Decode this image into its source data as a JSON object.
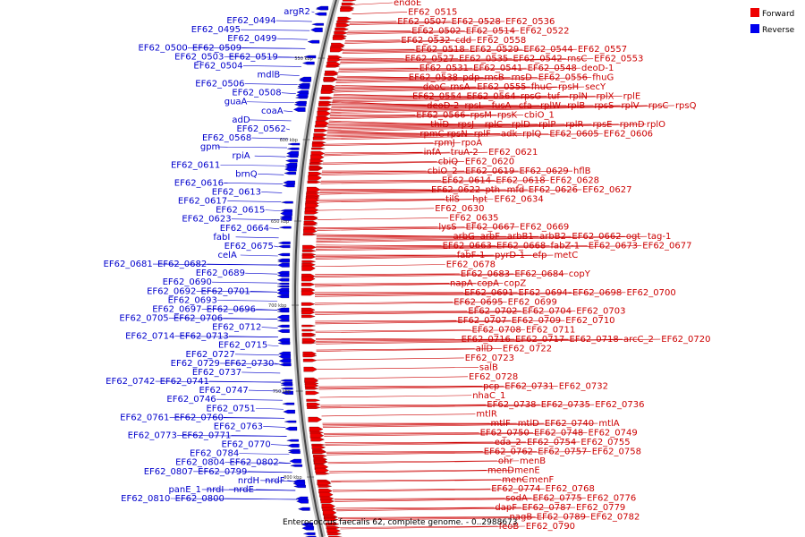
{
  "title": "Enterococcus faecalis 62, complete genome. - 0..2988673",
  "colors": {
    "forward": "#ee0000",
    "reverse": "#0000ee",
    "forward_label": "#cc0000",
    "reverse_label": "#0000cc",
    "backbone": "#888888"
  },
  "legend": [
    {
      "name": "Forward",
      "color": "#ee0000"
    },
    {
      "name": "Reverse",
      "color": "#0000ee"
    }
  ],
  "ruler": [
    "550 kbp",
    "600 kbp",
    "650 kbp",
    "700 kbp",
    "750 kbp",
    "800 kbp"
  ],
  "forward_labels": [
    [
      "endoE"
    ],
    [
      "EF62_0515"
    ],
    [
      "EF62_0507",
      "EF62_0528",
      "EF62_0536"
    ],
    [
      "EF62_0502",
      "EF62_0514",
      "EF62_0522"
    ],
    [
      "EF62_0532",
      "cdd",
      "EF62_0558"
    ],
    [
      "EF62_0518",
      "EF62_0529",
      "EF62_0544",
      "EF62_0557"
    ],
    [
      "EF62_0527",
      "EF62_0535",
      "EF62_0542",
      "rnsC",
      "EF62_0553"
    ],
    [
      "EF62_0531",
      "EF62_0541",
      "EF62_0548",
      "deoD-1"
    ],
    [
      "EF62_0538",
      "pdp",
      "rnsB",
      "rnsD",
      "EF62_0556",
      "fhuG"
    ],
    [
      "deoC",
      "rnsA",
      "EF62_0555",
      "fhuC",
      "rpsH",
      "secY"
    ],
    [
      "EF62_0554",
      "EF62_0564",
      "rpsG",
      "tuf",
      "rplN",
      "rplX",
      "rplE"
    ],
    [
      "deoD-2",
      "rpsL",
      "fusA",
      "cfa",
      "rplW",
      "rplB",
      "rpsS",
      "rplV",
      "rpsC",
      "rpsQ"
    ],
    [
      "EF62_0566",
      "rpsM",
      "rpsK",
      "cbiO_1"
    ],
    [
      "thiD",
      "rpsJ",
      "rplC",
      "rplD",
      "rplP",
      "rplR",
      "rpsE",
      "rpmD",
      "rplO"
    ],
    [
      "rpmC",
      "rpsN",
      "rplF",
      "adk",
      "rplQ",
      "EF62_0605",
      "EF62_0606"
    ],
    [
      "rpmJ",
      "rpoA"
    ],
    [
      "infA",
      "truA-2",
      "EF62_0621"
    ],
    [
      "cbiQ",
      "EF62_0620"
    ],
    [
      "cbiO_2",
      "EF62_0619",
      "EF62_0629",
      "hflB"
    ],
    [
      "EF62_0614",
      "EF62_0618",
      "EF62_0628"
    ],
    [
      "EF62_0622",
      "pth",
      "mfd",
      "EF62_0626",
      "EF62_0627"
    ],
    [
      "tilS",
      "hpt",
      "EF62_0634"
    ],
    [
      "EF62_0630"
    ],
    [
      "EF62_0635"
    ],
    [
      "lysS",
      "EF62_0667",
      "EF62_0669"
    ],
    [
      "arbG",
      "arbF",
      "arbB1",
      "arbB2",
      "EF62_0662",
      "ogt",
      "tag-1"
    ],
    [
      "EF62_0663",
      "EF62_0668",
      "fabZ-1",
      "EF62_0673",
      "EF62_0677"
    ],
    [
      "fabF-1",
      "pyrD-1",
      "efp",
      "metC"
    ],
    [
      "EF62_0678"
    ],
    [
      "EF62_0683",
      "EF62_0684",
      "copY"
    ],
    [
      "napA",
      "copA",
      "copZ"
    ],
    [
      "EF62_0691",
      "EF62_0694",
      "EF62_0698",
      "EF62_0700"
    ],
    [
      "EF62_0695",
      "EF62_0699"
    ],
    [
      "EF62_0702",
      "EF62_0704",
      "EF62_0703"
    ],
    [
      "EF62_0707",
      "EF62_0709",
      "EF62_0710"
    ],
    [
      "EF62_0708",
      "EF62_0711"
    ],
    [
      "EF62_0716",
      "EF62_0717",
      "EF62_0718",
      "arcC_2",
      "EF62_0720"
    ],
    [
      "allD",
      "EF62_0722"
    ],
    [
      "EF62_0723"
    ],
    [
      "salB"
    ],
    [
      "EF62_0728"
    ],
    [
      "pcp",
      "EF62_0731",
      "EF62_0732"
    ],
    [
      "nhaC_1"
    ],
    [
      "EF62_0738",
      "EF62_0735",
      "EF62_0736"
    ],
    [
      "mtlR"
    ],
    [
      "mtlF",
      "mtlD",
      "EF62_0740",
      "mtlA"
    ],
    [
      "EF62_0750",
      "EF62_0748",
      "EF62_0749"
    ],
    [
      "eda_2",
      "EF62_0754",
      "EF62_0755"
    ],
    [
      "EF62_0762",
      "EF62_0757",
      "EF62_0758"
    ],
    [
      "ohr",
      "menB"
    ],
    [
      "menD",
      "menE"
    ],
    [
      "menC",
      "menF"
    ],
    [
      "EF62_0774",
      "EF62_0768"
    ],
    [
      "sodA",
      "EF62_0775",
      "EF62_0776"
    ],
    [
      "dapF",
      "EF62_0787",
      "EF62_0779"
    ],
    [
      "nagB",
      "EF62_0789",
      "EF62_0782"
    ],
    [
      "feoB",
      "EF62_0790"
    ]
  ],
  "reverse_labels": [
    [
      "argR2"
    ],
    [
      "EF62_0494"
    ],
    [
      "EF62_0495"
    ],
    [
      "EF62_0499"
    ],
    [
      "EF62_0500",
      "EF62_0509"
    ],
    [
      "EF62_0503",
      "EF62_0519"
    ],
    [
      "EF62_0504"
    ],
    [
      "mdlB"
    ],
    [
      "EF62_0506"
    ],
    [
      "EF62_0508"
    ],
    [
      "guaA"
    ],
    [
      "coaA"
    ],
    [
      "adD"
    ],
    [
      "EF62_0562"
    ],
    [
      "EF62_0568"
    ],
    [
      "gpm"
    ],
    [
      "rpiA"
    ],
    [
      "EF62_0611"
    ],
    [
      "brnQ"
    ],
    [
      "EF62_0616"
    ],
    [
      "EF62_0613"
    ],
    [
      "EF62_0617"
    ],
    [
      "EF62_0615"
    ],
    [
      "EF62_0623"
    ],
    [
      "EF62_0664"
    ],
    [
      "fabI"
    ],
    [
      "EF62_0675"
    ],
    [
      "celA"
    ],
    [
      "EF62_0681",
      "EF62_0682"
    ],
    [
      "EF62_0689"
    ],
    [
      "EF62_0690"
    ],
    [
      "EF62_0692",
      "EF62_0701"
    ],
    [
      "EF62_0693"
    ],
    [
      "EF62_0697",
      "EF62_0696"
    ],
    [
      "EF62_0705",
      "EF62_0706"
    ],
    [
      "EF62_0712"
    ],
    [
      "EF62_0714",
      "EF62_0713"
    ],
    [
      "EF62_0715"
    ],
    [
      "EF62_0727"
    ],
    [
      "EF62_0729",
      "EF62_0730"
    ],
    [
      "EF62_0737"
    ],
    [
      "EF62_0742",
      "EF62_0741"
    ],
    [
      "EF62_0747"
    ],
    [
      "EF62_0746"
    ],
    [
      "EF62_0751"
    ],
    [
      "EF62_0761",
      "EF62_0760"
    ],
    [
      "EF62_0763"
    ],
    [
      "EF62_0773",
      "EF62_0771"
    ],
    [
      "EF62_0770"
    ],
    [
      "EF62_0784"
    ],
    [
      "EF62_0804",
      "EF62_0802"
    ],
    [
      "EF62_0807",
      "EF62_0799"
    ],
    [
      "nrdH",
      "nrdF"
    ],
    [
      "panE_1",
      "nrdI",
      "nrdE"
    ],
    [
      "EF62_0810",
      "EF62_0800"
    ]
  ]
}
